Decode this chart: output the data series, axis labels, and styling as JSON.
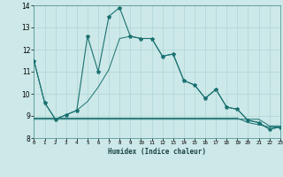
{
  "xlabel": "Humidex (Indice chaleur)",
  "background_color": "#cce8e8",
  "grid_color": "#b0d4d4",
  "line_color": "#1a7070",
  "x_values": [
    0,
    1,
    2,
    3,
    4,
    5,
    6,
    7,
    8,
    9,
    10,
    11,
    12,
    13,
    14,
    15,
    16,
    17,
    18,
    19,
    20,
    21,
    22,
    23
  ],
  "line1": [
    11.5,
    9.6,
    8.85,
    9.05,
    9.25,
    12.6,
    11.0,
    13.5,
    13.9,
    12.6,
    12.5,
    12.5,
    11.7,
    11.8,
    10.6,
    10.4,
    9.8,
    10.2,
    9.4,
    9.3,
    8.8,
    8.7,
    8.4,
    8.5
  ],
  "line2": [
    11.5,
    9.6,
    8.85,
    9.05,
    9.25,
    9.65,
    10.3,
    11.1,
    12.5,
    12.6,
    12.5,
    12.5,
    11.7,
    11.8,
    10.6,
    10.4,
    9.8,
    10.2,
    9.4,
    9.3,
    8.8,
    8.7,
    8.4,
    8.5
  ],
  "line3": [
    8.85,
    8.85,
    8.85,
    8.85,
    8.85,
    8.85,
    8.85,
    8.85,
    8.85,
    8.85,
    8.85,
    8.85,
    8.85,
    8.85,
    8.85,
    8.85,
    8.85,
    8.85,
    8.85,
    8.85,
    8.85,
    8.85,
    8.55,
    8.55
  ],
  "line4": [
    8.9,
    8.9,
    8.9,
    8.9,
    8.9,
    8.9,
    8.9,
    8.9,
    8.9,
    8.9,
    8.9,
    8.9,
    8.9,
    8.9,
    8.9,
    8.9,
    8.9,
    8.9,
    8.9,
    8.9,
    8.7,
    8.6,
    8.5,
    8.5
  ],
  "ylim": [
    8,
    14
  ],
  "xlim": [
    0,
    23
  ],
  "yticks": [
    8,
    9,
    10,
    11,
    12,
    13,
    14
  ]
}
